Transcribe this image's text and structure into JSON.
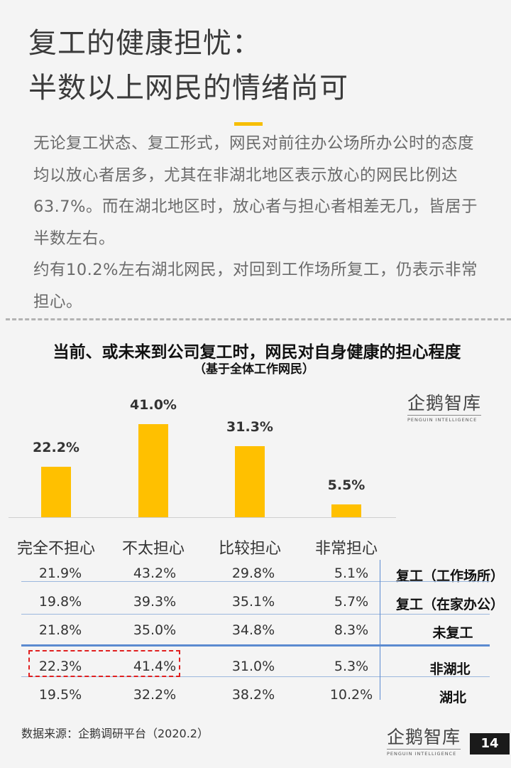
{
  "header": {
    "title_line1": "复工的健康担忧：",
    "title_line2": "半数以上网民的情绪尚可"
  },
  "paragraphs": [
    "无论复工状态、复工形式，网民对前往办公场所办公时的态度均以放心者居多，尤其在非湖北地区表示放心的网民比例达63.7%。而在湖北地区时，放心者与担心者相差无几，皆居于半数左右。",
    "约有10.2%左右湖北网民，对回到工作场所复工，仍表示非常担心。"
  ],
  "chart_data": {
    "type": "bar",
    "title": "当前、或未来到公司复工时，网民对自身健康的担心程度",
    "subtitle": "（基于全体工作网民）",
    "categories": [
      "完全不担心",
      "不太担心",
      "比较担心",
      "非常担心"
    ],
    "values": [
      22.2,
      41.0,
      31.3,
      5.5
    ],
    "value_labels": [
      "22.2%",
      "41.0%",
      "31.3%",
      "5.5%"
    ],
    "bar_color": "#ffc000",
    "ylim": [
      0,
      45
    ]
  },
  "table": {
    "rows": [
      {
        "label": "复工（工作场所）",
        "values": [
          "21.9%",
          "43.2%",
          "29.8%",
          "5.1%"
        ]
      },
      {
        "label": "复工（在家办公）",
        "values": [
          "19.8%",
          "39.3%",
          "35.1%",
          "5.7%"
        ]
      },
      {
        "label": "未复工",
        "values": [
          "21.8%",
          "35.0%",
          "34.8%",
          "8.3%"
        ]
      },
      {
        "label": "非湖北",
        "values": [
          "22.3%",
          "41.4%",
          "31.0%",
          "5.3%"
        ]
      },
      {
        "label": "湖北",
        "values": [
          "19.5%",
          "32.2%",
          "38.2%",
          "10.2%"
        ]
      }
    ]
  },
  "logo": {
    "name": "企鹅智库",
    "tagline": "PENGUIN INTELLIGENCE"
  },
  "footer": {
    "source": "数据来源：企鹅调研平台（2020.2）",
    "page": "14"
  },
  "colors": {
    "accent": "#f6be00",
    "table_line": "#5b8ad0",
    "highlight": "#e02020"
  }
}
